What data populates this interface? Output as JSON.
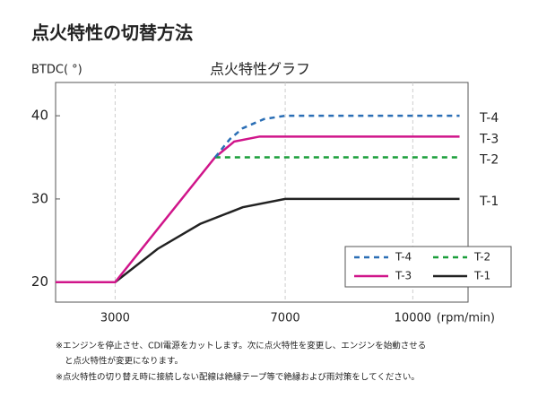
{
  "heading": "点火特性の切替方法",
  "chart_data": {
    "type": "line",
    "title": "点火特性グラフ",
    "ylabel": "BTDC( °)",
    "xlabel": "(rpm/min)",
    "xlim": [
      1600,
      11300
    ],
    "ylim": [
      17.6,
      44
    ],
    "xticks": [
      3000,
      7000,
      10000
    ],
    "yticks": [
      20,
      30,
      40
    ],
    "grid": true,
    "legend": "lower right",
    "series": [
      {
        "name": "T-4",
        "color": "#2a6eb5",
        "dash": true,
        "x": [
          5350,
          5700,
          6000,
          6500,
          7000,
          11100
        ],
        "values": [
          35,
          37.2,
          38.5,
          39.6,
          40,
          40
        ]
      },
      {
        "name": "T-2",
        "color": "#1a9e3a",
        "dash": true,
        "x": [
          5350,
          11100
        ],
        "values": [
          35,
          35
        ]
      },
      {
        "name": "T-3",
        "color": "#d0158a",
        "dash": false,
        "x": [
          1600,
          3000,
          5350,
          5800,
          6400,
          11100
        ],
        "values": [
          20,
          20,
          35,
          36.9,
          37.5,
          37.5
        ]
      },
      {
        "name": "T-1",
        "color": "#222222",
        "dash": false,
        "x": [
          1600,
          3000,
          4000,
          5000,
          6000,
          7000,
          11100
        ],
        "values": [
          20,
          20,
          24,
          27,
          29,
          30,
          30
        ]
      }
    ]
  },
  "notes": [
    "※エンジンを停止させ、CDI電源をカットします。次に点火特性を変更し、エンジンを始動させる",
    "と点火特性が変更になります。",
    "※点火特性の切り替え時に接続しない配線は絶縁テープ等で絶縁および雨対策をしてください。"
  ]
}
